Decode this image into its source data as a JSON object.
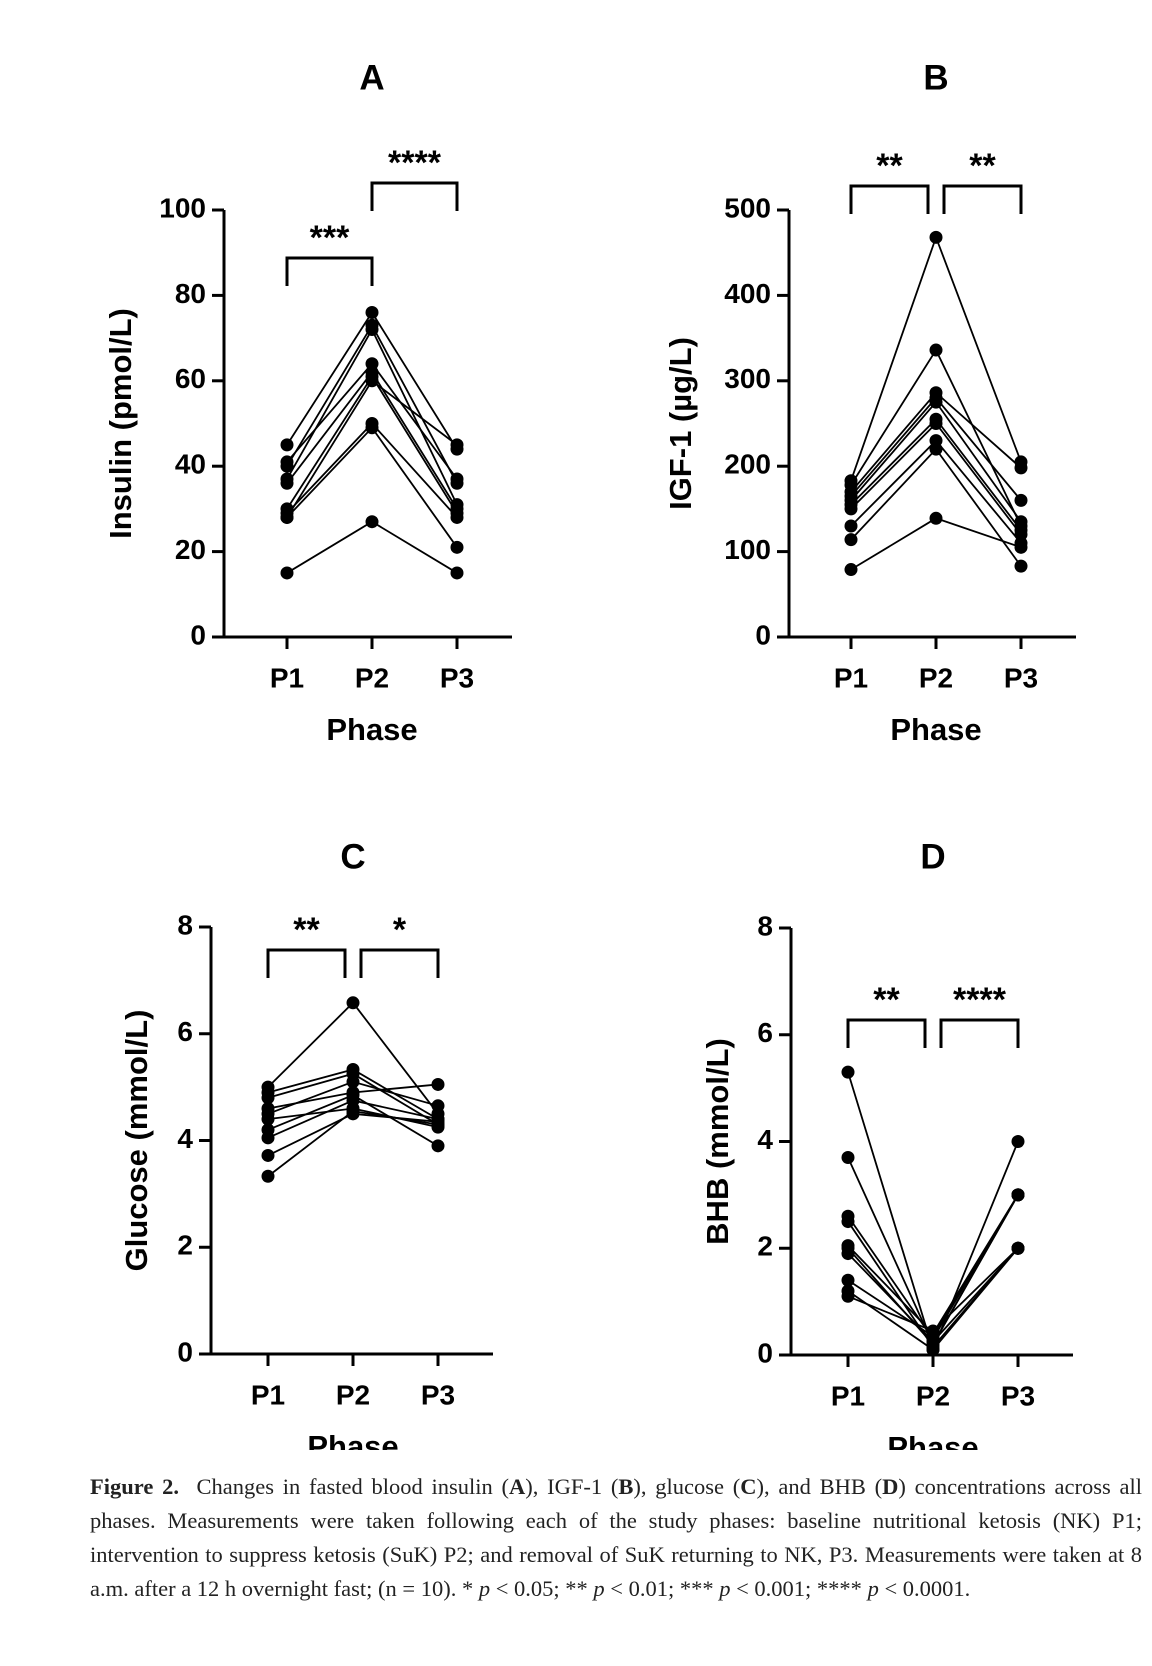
{
  "chart_data": [
    {
      "type": "line",
      "title": "A",
      "y_label": "Insulin (pmol/L)",
      "x_label": "Phase",
      "categories": [
        "P1",
        "P2",
        "P3"
      ],
      "ylim": [
        0,
        100
      ],
      "yticks": [
        0,
        20,
        40,
        60,
        80,
        100
      ],
      "color": "#000000",
      "series": [
        {
          "values": [
            15,
            27,
            15
          ]
        },
        {
          "values": [
            28,
            49,
            21
          ]
        },
        {
          "values": [
            29,
            50,
            28
          ]
        },
        {
          "values": [
            30,
            61,
            29
          ]
        },
        {
          "values": [
            36,
            62,
            30
          ]
        },
        {
          "values": [
            37,
            72,
            31
          ]
        },
        {
          "values": [
            40,
            73,
            36
          ]
        },
        {
          "values": [
            41,
            64,
            37
          ]
        },
        {
          "values": [
            45,
            76,
            44
          ]
        },
        {
          "values": [
            28,
            60,
            45
          ]
        }
      ],
      "annotations": [
        {
          "text": "***",
          "from": "P1",
          "to": "P2"
        },
        {
          "text": "****",
          "from": "P2",
          "to": "P3"
        }
      ]
    },
    {
      "type": "line",
      "title": "B",
      "y_label": "IGF-1 (µg/L)",
      "x_label": "Phase",
      "categories": [
        "P1",
        "P2",
        "P3"
      ],
      "ylim": [
        0,
        500
      ],
      "yticks": [
        0,
        100,
        200,
        300,
        400,
        500
      ],
      "color": "#000000",
      "series": [
        {
          "values": [
            79,
            139,
            105
          ]
        },
        {
          "values": [
            114,
            220,
            83
          ]
        },
        {
          "values": [
            130,
            230,
            110
          ]
        },
        {
          "values": [
            150,
            250,
            120
          ]
        },
        {
          "values": [
            155,
            255,
            125
          ]
        },
        {
          "values": [
            160,
            275,
            135
          ]
        },
        {
          "values": [
            165,
            280,
            160
          ]
        },
        {
          "values": [
            170,
            286,
            198
          ]
        },
        {
          "values": [
            178,
            336,
            130
          ]
        },
        {
          "values": [
            183,
            468,
            205
          ]
        }
      ],
      "annotations": [
        {
          "text": "**",
          "from": "P1",
          "to": "P2"
        },
        {
          "text": "**",
          "from": "P2",
          "to": "P3"
        }
      ]
    },
    {
      "type": "line",
      "title": "C",
      "y_label": "Glucose (mmol/L)",
      "x_label": "Phase",
      "categories": [
        "P1",
        "P2",
        "P3"
      ],
      "ylim": [
        0,
        8
      ],
      "yticks": [
        0,
        2,
        4,
        6,
        8
      ],
      "color": "#000000",
      "series": [
        {
          "values": [
            3.33,
            4.55,
            4.3
          ]
        },
        {
          "values": [
            3.72,
            4.5,
            4.35
          ]
        },
        {
          "values": [
            4.05,
            4.75,
            4.4
          ]
        },
        {
          "values": [
            4.2,
            4.85,
            3.9
          ]
        },
        {
          "values": [
            4.4,
            4.6,
            4.25
          ]
        },
        {
          "values": [
            4.5,
            5.1,
            4.65
          ]
        },
        {
          "values": [
            4.6,
            4.9,
            5.05
          ]
        },
        {
          "values": [
            4.8,
            5.25,
            4.3
          ]
        },
        {
          "values": [
            4.9,
            5.33,
            4.4
          ]
        },
        {
          "values": [
            5.0,
            6.58,
            4.5
          ]
        }
      ],
      "annotations": [
        {
          "text": "**",
          "from": "P1",
          "to": "P2"
        },
        {
          "text": "*",
          "from": "P2",
          "to": "P3"
        }
      ]
    },
    {
      "type": "line",
      "title": "D",
      "y_label": "BHB (mmol/L)",
      "x_label": "Phase",
      "categories": [
        "P1",
        "P2",
        "P3"
      ],
      "ylim": [
        0,
        8
      ],
      "yticks": [
        0,
        2,
        4,
        6,
        8
      ],
      "color": "#000000",
      "series": [
        {
          "values": [
            5.3,
            0.1,
            4.0
          ]
        },
        {
          "values": [
            3.7,
            0.2,
            3.0
          ]
        },
        {
          "values": [
            2.6,
            0.3,
            3.0
          ]
        },
        {
          "values": [
            2.5,
            0.15,
            2.0
          ]
        },
        {
          "values": [
            2.05,
            0.4,
            3.0
          ]
        },
        {
          "values": [
            1.9,
            0.25,
            2.0
          ]
        },
        {
          "values": [
            1.4,
            0.35,
            3.0
          ]
        },
        {
          "values": [
            1.2,
            0.1,
            2.0
          ]
        },
        {
          "values": [
            1.1,
            0.45,
            2.0
          ]
        },
        {
          "values": [
            2.0,
            0.2,
            3.0
          ]
        }
      ],
      "annotations": [
        {
          "text": "**",
          "from": "P1",
          "to": "P2"
        },
        {
          "text": "****",
          "from": "P2",
          "to": "P3"
        }
      ]
    }
  ],
  "caption": {
    "label": "Figure 2.",
    "segments": [
      "Changes in fasted blood insulin (",
      "A",
      "), IGF-1 (",
      "B",
      "), glucose (",
      "C",
      "), and BHB (",
      "D",
      ") concentrations across all phases. Measurements were taken following each of the study phases: baseline nutritional ketosis (NK) P1; intervention to suppress ketosis (SuK) P2; and removal of SuK returning to NK, P3. Measurements were taken at 8 a.m. after a 12 h overnight fast; (n = 10). * ",
      "p",
      " < 0.05; ** ",
      "p",
      " < 0.01; *** ",
      "p",
      " < 0.001; **** ",
      "p",
      " < 0.0001."
    ]
  }
}
